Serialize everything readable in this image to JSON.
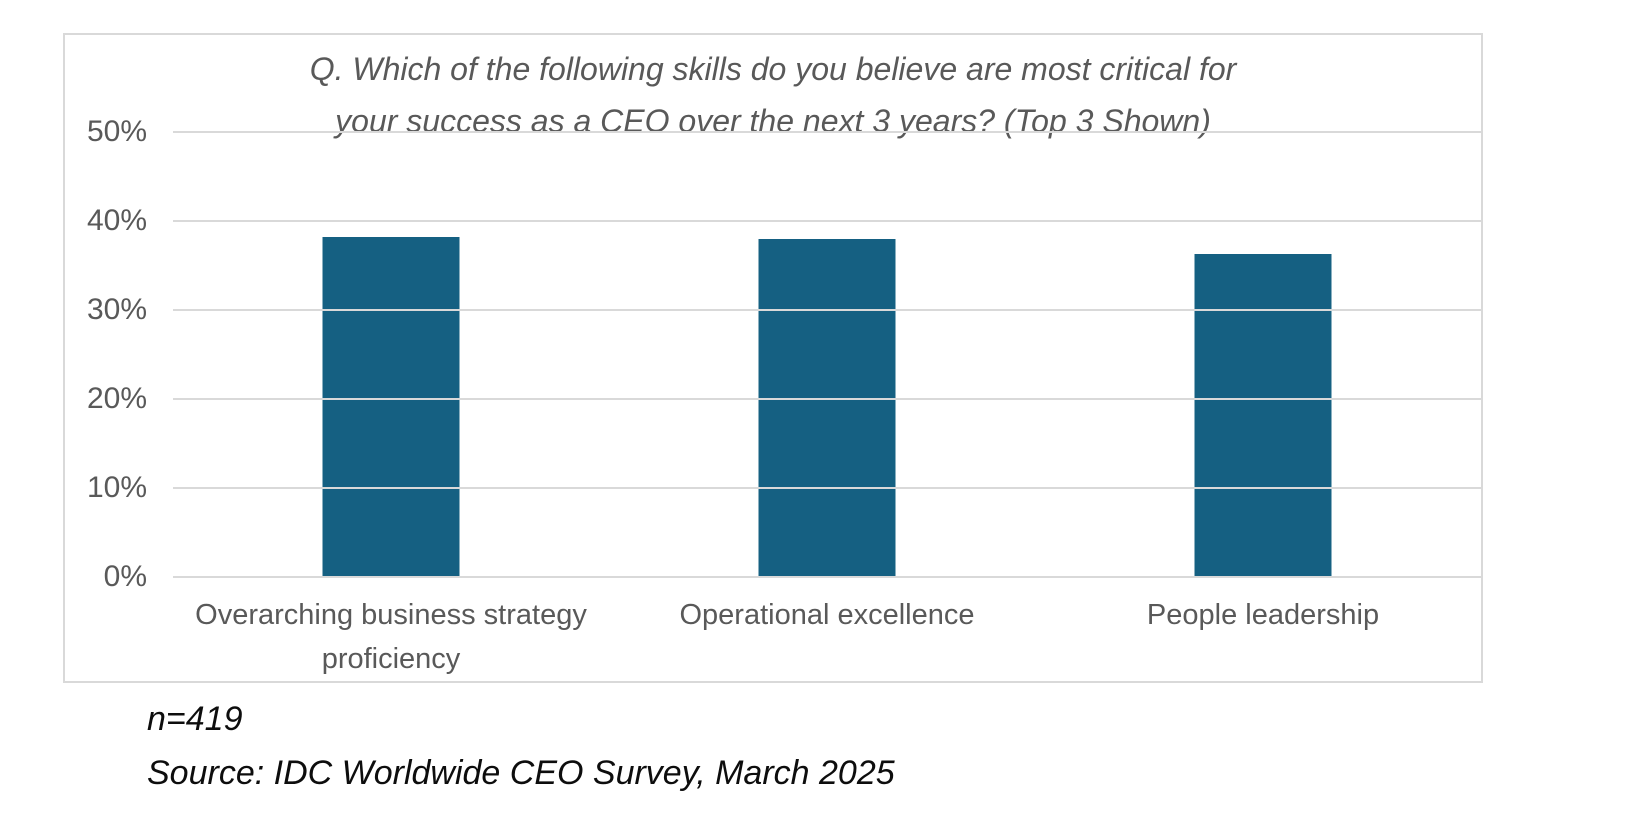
{
  "chart": {
    "title_lines": [
      "Q. Which of the following skills do you believe are most critical for",
      "your success as a CEO over the next 3 years? (Top 3 Shown)"
    ]
  },
  "chart_data": {
    "type": "bar",
    "title": "Q. Which of the following skills do you believe are most critical for your success as a CEO over the next 3 years? (Top 3 Shown)",
    "categories": [
      "Overarching business strategy proficiency",
      "Operational excellence",
      "People leadership"
    ],
    "values": [
      38.2,
      38,
      36.3
    ],
    "value_unit": "%",
    "xlabel": "",
    "ylabel": "",
    "ylim": [
      0,
      50
    ],
    "ytick_interval": 10,
    "ytick_labels": [
      "0%",
      "10%",
      "20%",
      "30%",
      "40%",
      "50%"
    ],
    "grid": true,
    "legend": false,
    "bar_color": "#156082"
  },
  "footer": {
    "sample_size": "n=419",
    "source": "Source: IDC Worldwide CEO Survey, March 2025"
  },
  "colors": {
    "bar": "#156082",
    "gridline": "#d9d9d9",
    "chart_border": "#d9d9d9",
    "axis_text": "#595959",
    "title_text": "#595959",
    "footer_text": "#0d0d0d",
    "background": "#ffffff"
  }
}
